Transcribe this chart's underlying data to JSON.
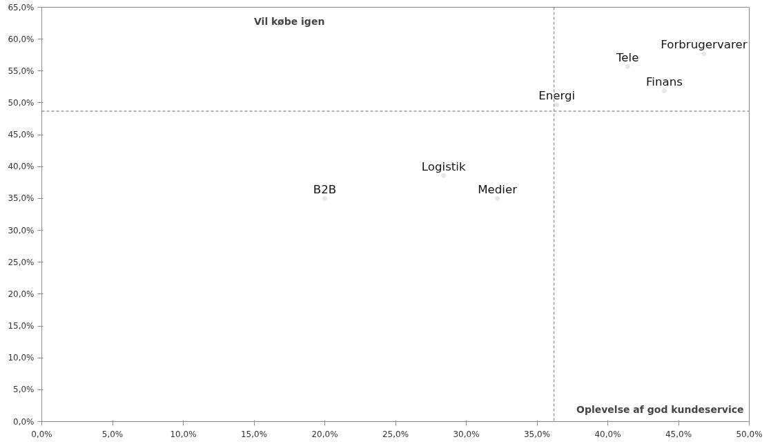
{
  "chart_data": {
    "type": "scatter",
    "xlabel": "Oplevelse af god kundeservice",
    "ylabel": "Vil købe igen",
    "marker": "circle",
    "grid": false,
    "series": [
      {
        "name": "B2B",
        "color": "#e6e6e6",
        "x": [
          20.0
        ],
        "values": [
          35.0
        ]
      },
      {
        "name": "Logistik",
        "color": "#e6e6e6",
        "x": [
          28.4
        ],
        "values": [
          38.6
        ]
      },
      {
        "name": "Medier",
        "color": "#e6e6e6",
        "x": [
          32.2
        ],
        "values": [
          35.0
        ]
      },
      {
        "name": "Energi",
        "color": "#e6e6e6",
        "x": [
          36.4
        ],
        "values": [
          49.7
        ]
      },
      {
        "name": "Tele",
        "color": "#e6e6e6",
        "x": [
          41.4
        ],
        "values": [
          55.7
        ]
      },
      {
        "name": "Finans",
        "color": "#e6e6e6",
        "x": [
          44.0
        ],
        "values": [
          51.9
        ]
      },
      {
        "name": "Forbrugervarer",
        "color": "#e6e6e6",
        "x": [
          46.8
        ],
        "values": [
          57.7
        ]
      }
    ],
    "xlim": [
      0,
      50
    ],
    "ylim": [
      0,
      65
    ],
    "xticks": [
      {
        "value": 0,
        "label": "0,0%"
      },
      {
        "value": 5,
        "label": "5,0%"
      },
      {
        "value": 10,
        "label": "10,0%"
      },
      {
        "value": 15,
        "label": "15,0%"
      },
      {
        "value": 20,
        "label": "20,0%"
      },
      {
        "value": 25,
        "label": "25,0%"
      },
      {
        "value": 30,
        "label": "30,0%"
      },
      {
        "value": 35,
        "label": "35,0%"
      },
      {
        "value": 40,
        "label": "40,0%"
      },
      {
        "value": 45,
        "label": "45,0%"
      },
      {
        "value": 50,
        "label": "50,0%"
      }
    ],
    "yticks": [
      {
        "value": 0,
        "label": "0,0%"
      },
      {
        "value": 5,
        "label": "5,0%"
      },
      {
        "value": 10,
        "label": "10,0%"
      },
      {
        "value": 15,
        "label": "15,0%"
      },
      {
        "value": 20,
        "label": "20,0%"
      },
      {
        "value": 25,
        "label": "25,0%"
      },
      {
        "value": 30,
        "label": "30,0%"
      },
      {
        "value": 35,
        "label": "35,0%"
      },
      {
        "value": 40,
        "label": "40,0%"
      },
      {
        "value": 45,
        "label": "45,0%"
      },
      {
        "value": 50,
        "label": "50,0%"
      },
      {
        "value": 55,
        "label": "55,0%"
      },
      {
        "value": 60,
        "label": "60,0%"
      },
      {
        "value": 65,
        "label": "65,0%"
      }
    ],
    "ref_lines": [
      {
        "axis": "x",
        "value": 36.2,
        "color": "#999999",
        "line_style": "dashed"
      },
      {
        "axis": "y",
        "value": 48.7,
        "color": "#999999",
        "line_style": "dashed"
      }
    ]
  }
}
